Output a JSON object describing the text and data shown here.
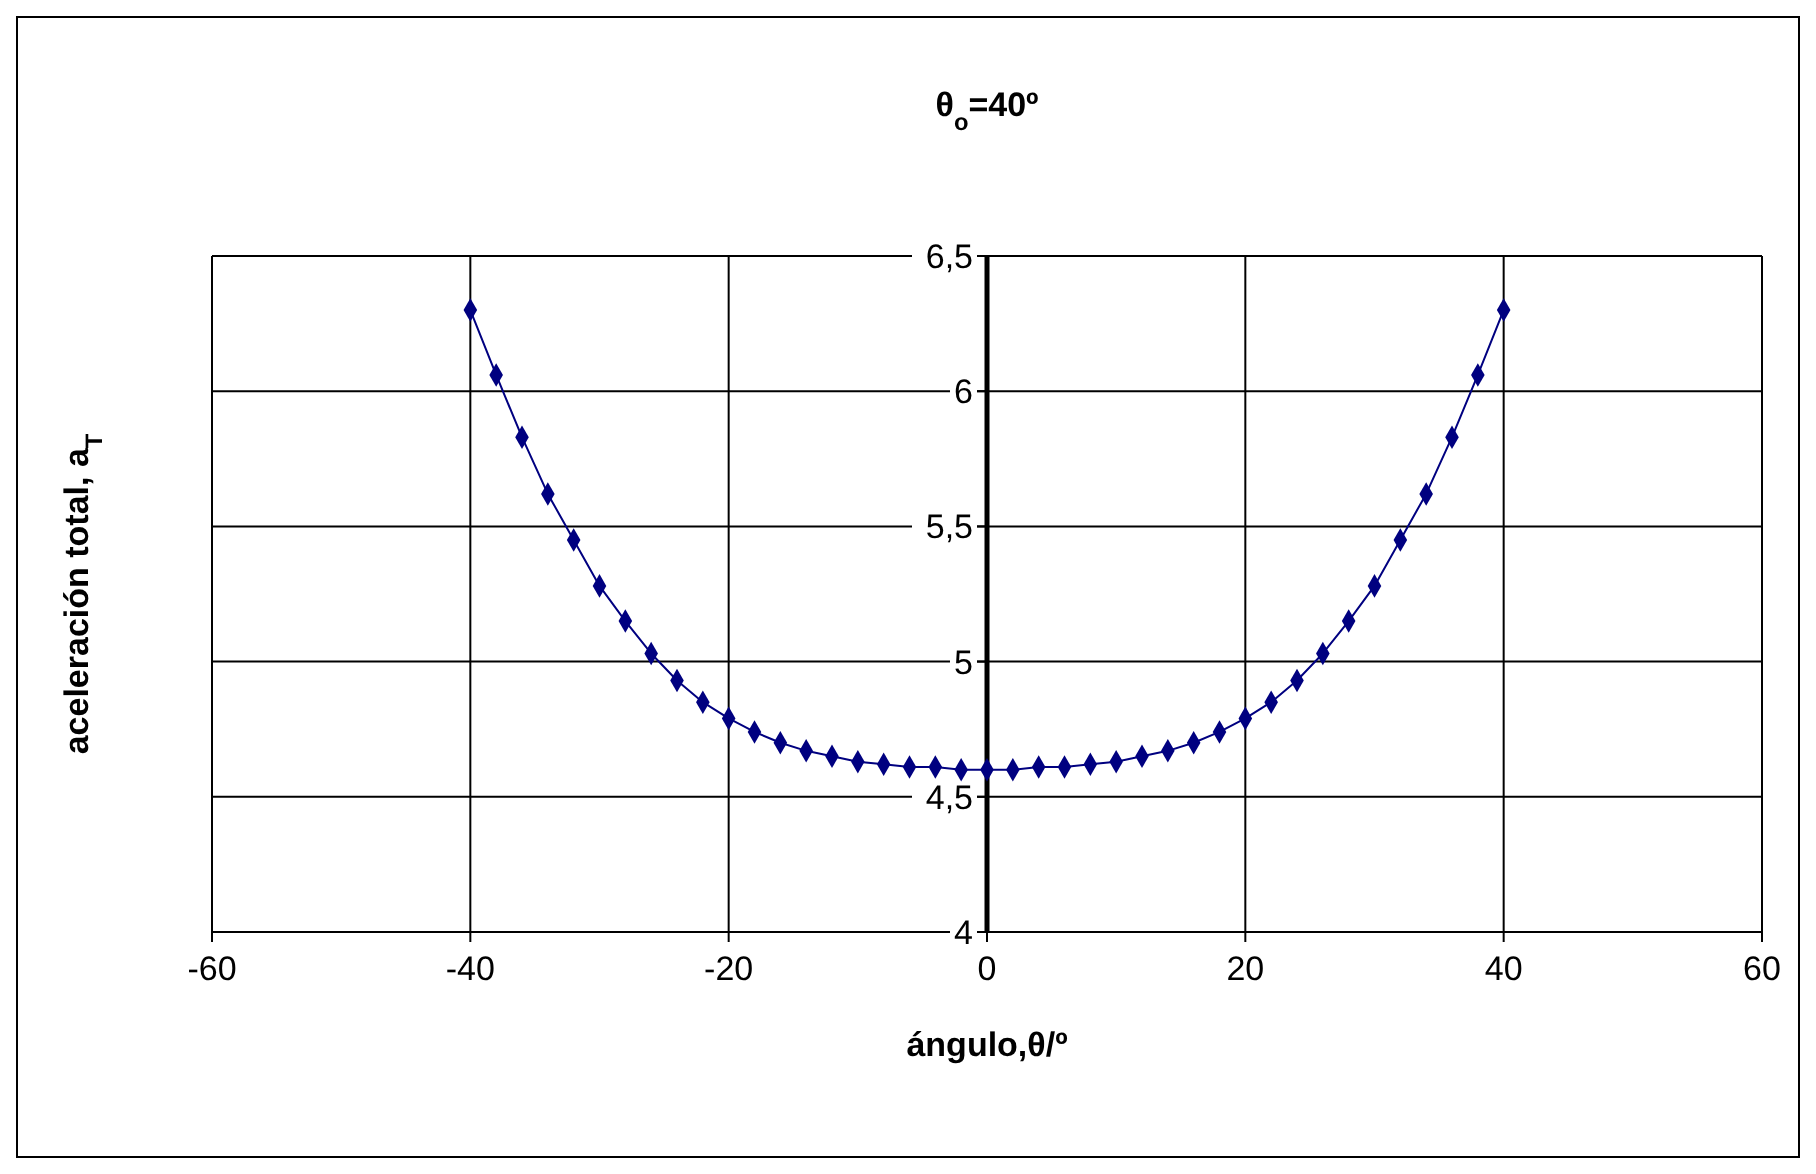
{
  "chart_data": {
    "type": "line",
    "title": "θ$_{o}$=40º",
    "xlabel": "ángulo,θ/º",
    "ylabel": "aceleración total, a$_{T}$",
    "x": [
      -40,
      -38,
      -36,
      -34,
      -32,
      -30,
      -28,
      -26,
      -24,
      -22,
      -20,
      -18,
      -16,
      -14,
      -12,
      -10,
      -8,
      -6,
      -4,
      -2,
      0,
      2,
      4,
      6,
      8,
      10,
      12,
      14,
      16,
      18,
      20,
      22,
      24,
      26,
      28,
      30,
      32,
      34,
      36,
      38,
      40
    ],
    "series": [
      {
        "color": "#000080",
        "values": [
          6.3,
          6.06,
          5.83,
          5.62,
          5.45,
          5.28,
          5.15,
          5.03,
          4.93,
          4.85,
          4.79,
          4.74,
          4.7,
          4.67,
          4.65,
          4.63,
          4.62,
          4.61,
          4.61,
          4.6,
          4.6,
          4.6,
          4.61,
          4.61,
          4.62,
          4.63,
          4.65,
          4.67,
          4.7,
          4.74,
          4.79,
          4.85,
          4.93,
          5.03,
          5.15,
          5.28,
          5.45,
          5.62,
          5.83,
          6.06,
          6.3
        ]
      }
    ],
    "xlim": [
      -60,
      60
    ],
    "xticks": [
      -60,
      -40,
      -20,
      0,
      20,
      40,
      60
    ],
    "ylim": [
      4,
      6.5
    ],
    "yticks": [
      4,
      {
        "value": 4.5,
        "label": "4,5"
      },
      5,
      {
        "value": 5.5,
        "label": "5,5"
      },
      6,
      {
        "value": 6.5,
        "label": "6,5"
      }
    ],
    "grid": true,
    "marker": "diamond",
    "line_style": "solid"
  }
}
